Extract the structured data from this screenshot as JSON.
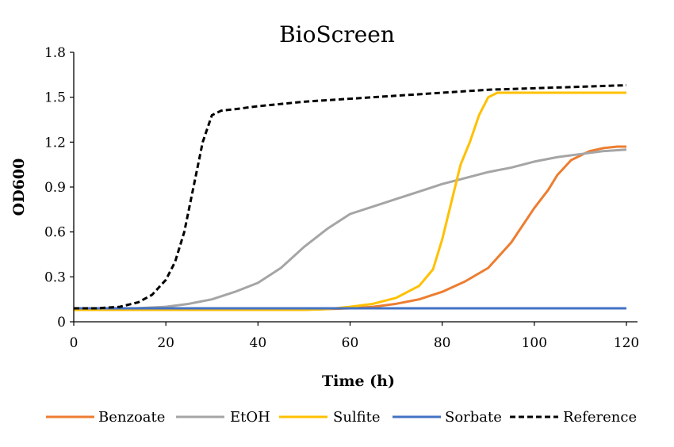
{
  "chart_data": {
    "type": "line",
    "title": "BioScreen",
    "xlabel": "Time (h)",
    "ylabel": "OD600",
    "xlim": [
      0,
      120
    ],
    "ylim": [
      0,
      1.8
    ],
    "x_ticks": [
      "0",
      "20",
      "40",
      "60",
      "80",
      "100",
      "120"
    ],
    "y_ticks": [
      "0",
      "0.3",
      "0.6",
      "0.9",
      "1.2",
      "1.5",
      "1.8"
    ],
    "grid": false,
    "legend_position": "bottom",
    "series": [
      {
        "name": "Benzoate",
        "color": "#ED7D31",
        "dash": "solid",
        "points": [
          [
            0,
            0.08
          ],
          [
            10,
            0.08
          ],
          [
            20,
            0.08
          ],
          [
            30,
            0.08
          ],
          [
            40,
            0.08
          ],
          [
            50,
            0.08
          ],
          [
            55,
            0.085
          ],
          [
            60,
            0.09
          ],
          [
            65,
            0.1
          ],
          [
            70,
            0.12
          ],
          [
            75,
            0.15
          ],
          [
            80,
            0.2
          ],
          [
            85,
            0.27
          ],
          [
            90,
            0.36
          ],
          [
            95,
            0.53
          ],
          [
            100,
            0.76
          ],
          [
            103,
            0.88
          ],
          [
            105,
            0.98
          ],
          [
            108,
            1.08
          ],
          [
            112,
            1.14
          ],
          [
            115,
            1.16
          ],
          [
            118,
            1.17
          ],
          [
            120,
            1.17
          ]
        ]
      },
      {
        "name": "EtOH",
        "color": "#A5A5A5",
        "dash": "solid",
        "points": [
          [
            0,
            0.08
          ],
          [
            10,
            0.085
          ],
          [
            20,
            0.1
          ],
          [
            25,
            0.12
          ],
          [
            30,
            0.15
          ],
          [
            35,
            0.2
          ],
          [
            40,
            0.26
          ],
          [
            45,
            0.36
          ],
          [
            50,
            0.5
          ],
          [
            55,
            0.62
          ],
          [
            60,
            0.72
          ],
          [
            65,
            0.77
          ],
          [
            70,
            0.82
          ],
          [
            75,
            0.87
          ],
          [
            80,
            0.92
          ],
          [
            85,
            0.96
          ],
          [
            90,
            1.0
          ],
          [
            95,
            1.03
          ],
          [
            100,
            1.07
          ],
          [
            105,
            1.1
          ],
          [
            110,
            1.12
          ],
          [
            115,
            1.14
          ],
          [
            120,
            1.15
          ]
        ]
      },
      {
        "name": "Sulfite",
        "color": "#FFC000",
        "dash": "solid",
        "points": [
          [
            0,
            0.08
          ],
          [
            10,
            0.08
          ],
          [
            20,
            0.08
          ],
          [
            30,
            0.08
          ],
          [
            40,
            0.08
          ],
          [
            50,
            0.08
          ],
          [
            55,
            0.085
          ],
          [
            60,
            0.1
          ],
          [
            65,
            0.12
          ],
          [
            70,
            0.16
          ],
          [
            75,
            0.24
          ],
          [
            78,
            0.35
          ],
          [
            80,
            0.55
          ],
          [
            82,
            0.8
          ],
          [
            84,
            1.05
          ],
          [
            86,
            1.2
          ],
          [
            88,
            1.38
          ],
          [
            90,
            1.5
          ],
          [
            92,
            1.53
          ],
          [
            95,
            1.53
          ],
          [
            100,
            1.53
          ],
          [
            110,
            1.53
          ],
          [
            120,
            1.53
          ]
        ]
      },
      {
        "name": "Sorbate",
        "color": "#4472C4",
        "dash": "solid",
        "points": [
          [
            0,
            0.09
          ],
          [
            20,
            0.09
          ],
          [
            40,
            0.09
          ],
          [
            60,
            0.09
          ],
          [
            80,
            0.09
          ],
          [
            100,
            0.09
          ],
          [
            120,
            0.09
          ]
        ]
      },
      {
        "name": "Reference",
        "color": "#000000",
        "dash": "dashed",
        "points": [
          [
            0,
            0.09
          ],
          [
            5,
            0.09
          ],
          [
            10,
            0.1
          ],
          [
            14,
            0.13
          ],
          [
            17,
            0.18
          ],
          [
            20,
            0.28
          ],
          [
            22,
            0.4
          ],
          [
            24,
            0.6
          ],
          [
            26,
            0.9
          ],
          [
            28,
            1.2
          ],
          [
            30,
            1.38
          ],
          [
            32,
            1.41
          ],
          [
            35,
            1.42
          ],
          [
            40,
            1.44
          ],
          [
            50,
            1.47
          ],
          [
            60,
            1.49
          ],
          [
            70,
            1.51
          ],
          [
            80,
            1.53
          ],
          [
            90,
            1.55
          ],
          [
            100,
            1.56
          ],
          [
            110,
            1.57
          ],
          [
            120,
            1.58
          ]
        ]
      }
    ]
  }
}
